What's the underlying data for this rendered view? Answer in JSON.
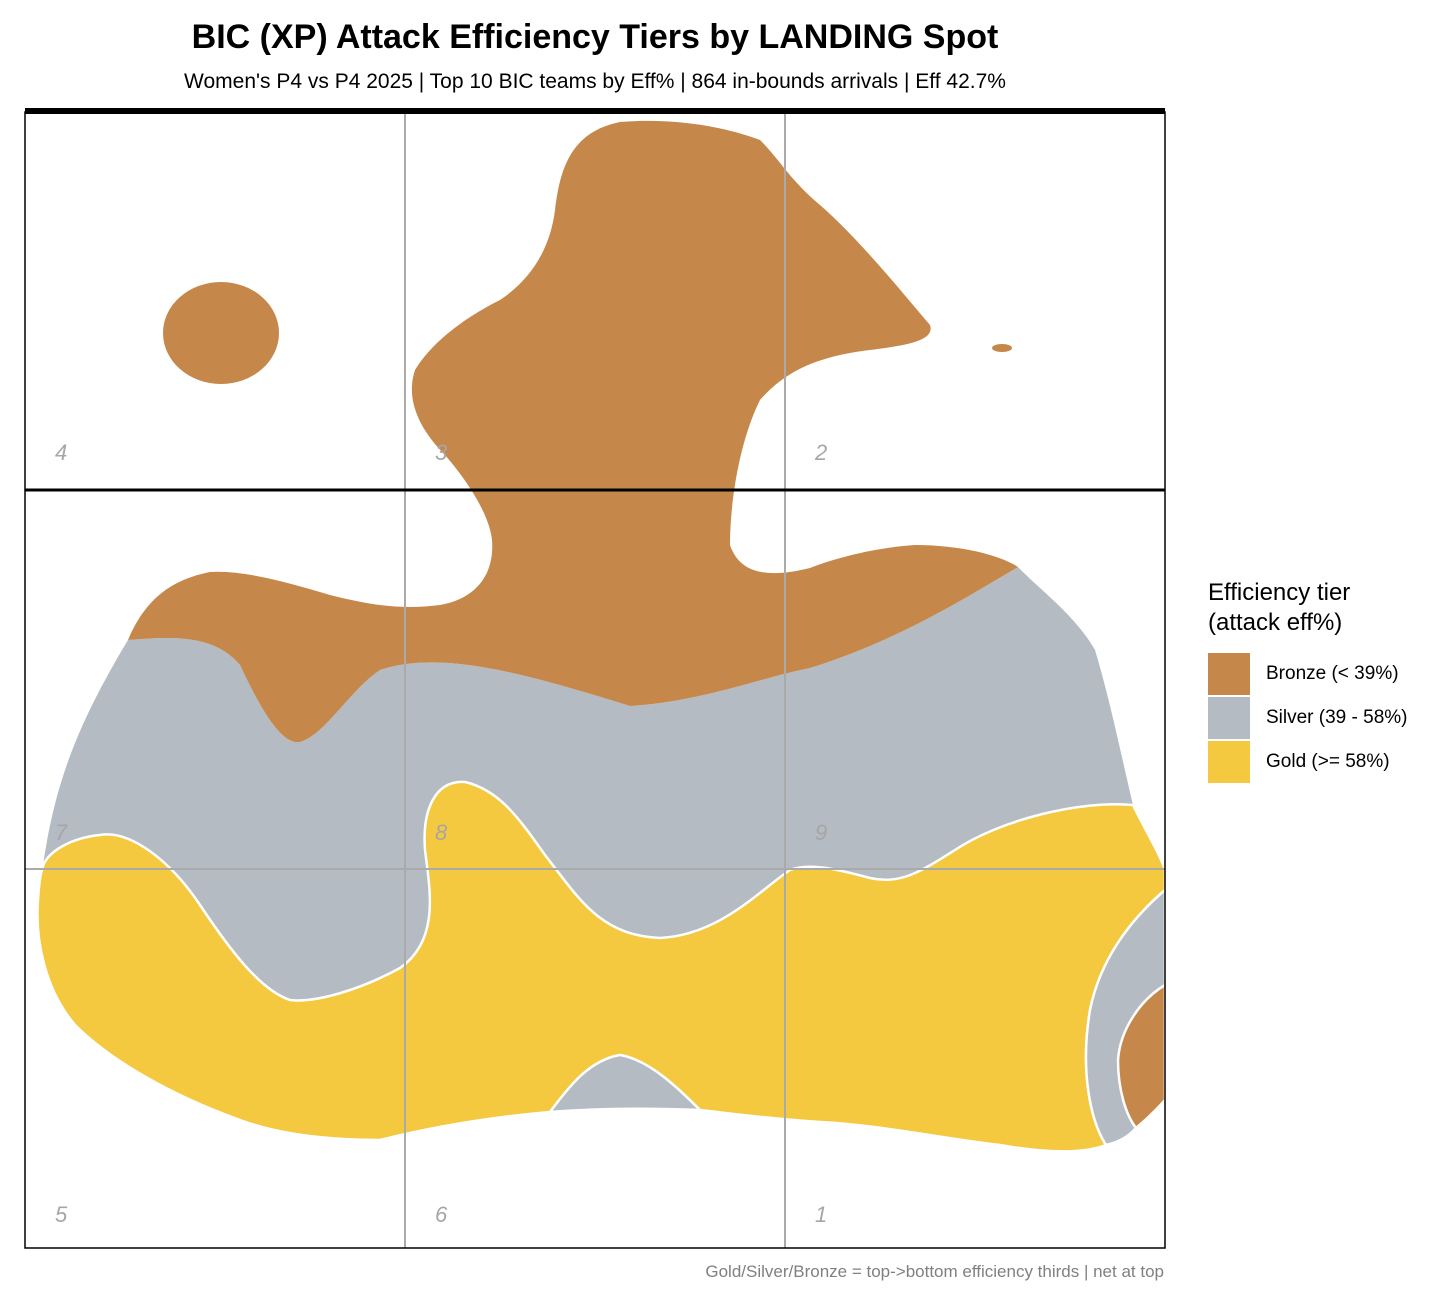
{
  "chart_data": {
    "type": "heatmap",
    "title": "BIC (XP) Attack Efficiency Tiers by LANDING Spot",
    "subtitle": "Women's P4 vs P4 2025 | Top 10 BIC teams by Eff% | 864 in-bounds arrivals | Eff 42.7%",
    "caption": "Gold/Silver/Bronze = top->bottom efficiency thirds | net at top",
    "zones": [
      {
        "label": "4",
        "row": 1,
        "col": 1
      },
      {
        "label": "3",
        "row": 1,
        "col": 2
      },
      {
        "label": "2",
        "row": 1,
        "col": 3
      },
      {
        "label": "7",
        "row": 2,
        "col": 1
      },
      {
        "label": "8",
        "row": 2,
        "col": 2
      },
      {
        "label": "9",
        "row": 2,
        "col": 3
      },
      {
        "label": "5",
        "row": 3,
        "col": 1
      },
      {
        "label": "6",
        "row": 3,
        "col": 2
      },
      {
        "label": "1",
        "row": 3,
        "col": 3
      }
    ],
    "legend": {
      "title": "Efficiency tier\n(attack eff%)",
      "position": "right",
      "items": [
        {
          "label": "Bronze (< 39%)",
          "color": "#C5884A"
        },
        {
          "label": "Silver (39 - 58%)",
          "color": "#B4BBC2"
        },
        {
          "label": "Gold (>= 58%)",
          "color": "#F4C83F"
        }
      ]
    },
    "net_position": "top",
    "grid": true
  }
}
